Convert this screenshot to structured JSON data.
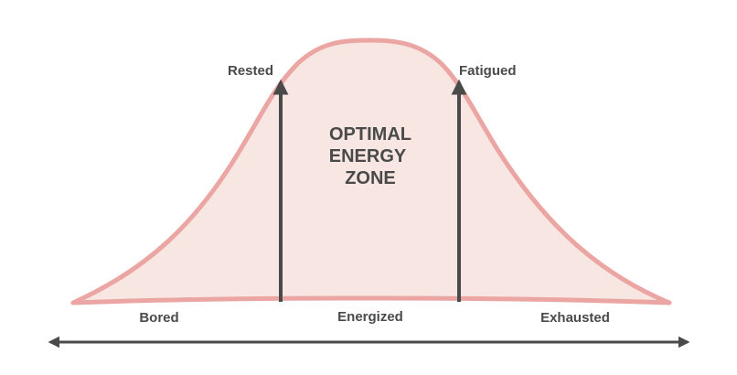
{
  "colors": {
    "curve_stroke": "#eba5a3",
    "curve_fill": "#f7e6e1",
    "arrow": "#4a4a4a",
    "text": "#4a4a4a"
  },
  "markers": {
    "rested": "Rested",
    "fatigued": "Fatigued"
  },
  "zone": {
    "line1": "OPTIMAL",
    "line2": "ENERGY",
    "line3": "ZONE"
  },
  "states": {
    "bored": "Bored",
    "energized": "Energized",
    "exhausted": "Exhausted"
  }
}
